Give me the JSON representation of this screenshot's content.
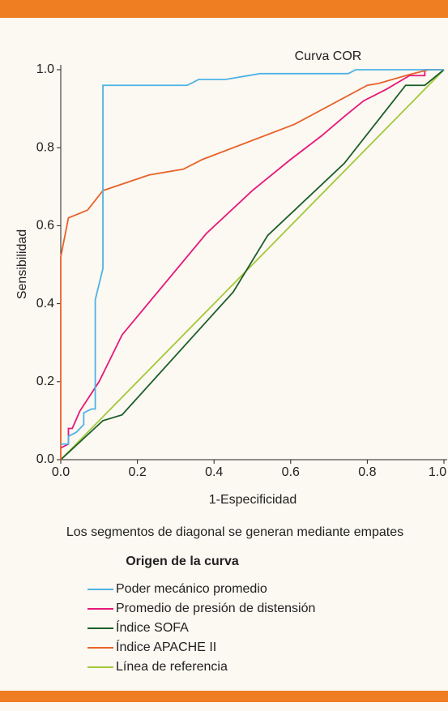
{
  "chart_data": {
    "type": "line",
    "title": "Curva COR",
    "xlabel": "1-Especificidad",
    "ylabel": "Sensibilidad",
    "note": "Los segmentos de diagonal se generan mediante empates",
    "legend_title": "Origen de la curva",
    "xlim": [
      0,
      1
    ],
    "ylim": [
      0,
      1
    ],
    "xticks": [
      {
        "value": 0,
        "label": "0.0"
      },
      {
        "value": 0.2,
        "label": "0.2"
      },
      {
        "value": 0.4,
        "label": "0.4"
      },
      {
        "value": 0.6,
        "label": "0.6"
      },
      {
        "value": 0.8,
        "label": "0.8"
      },
      {
        "value": 1,
        "label": "1.0"
      }
    ],
    "yticks": [
      {
        "value": 0,
        "label": "0.0"
      },
      {
        "value": 0.2,
        "label": "0.2"
      },
      {
        "value": 0.4,
        "label": "0.4"
      },
      {
        "value": 0.6,
        "label": "0.6"
      },
      {
        "value": 0.8,
        "label": "0.8"
      },
      {
        "value": 1,
        "label": "1.0"
      }
    ],
    "series": [
      {
        "name": "Poder mecánico promedio",
        "color": "#4db3e6",
        "x": [
          0,
          0.02,
          0.02,
          0.04,
          0.06,
          0.06,
          0.08,
          0.09,
          0.09,
          0.1,
          0.11,
          0.11,
          0.33,
          0.36,
          0.43,
          0.52,
          0.75,
          0.77,
          1
        ],
        "values": [
          0.04,
          0.04,
          0.06,
          0.07,
          0.09,
          0.12,
          0.13,
          0.13,
          0.41,
          0.45,
          0.49,
          0.96,
          0.96,
          0.975,
          0.975,
          0.99,
          0.99,
          1,
          1
        ]
      },
      {
        "name": "Promedio de presión de distensión",
        "color": "#e6187a",
        "x": [
          0,
          0.02,
          0.02,
          0.03,
          0.05,
          0.08,
          0.1,
          0.11,
          0.16,
          0.38,
          0.5,
          0.6,
          0.68,
          0.74,
          0.79,
          0.85,
          0.91,
          0.95,
          0.95,
          1
        ],
        "values": [
          0.03,
          0.04,
          0.08,
          0.08,
          0.125,
          0.17,
          0.2,
          0.22,
          0.32,
          0.58,
          0.69,
          0.77,
          0.83,
          0.88,
          0.92,
          0.95,
          0.985,
          0.985,
          1,
          1
        ]
      },
      {
        "name": "Índice SOFA",
        "color": "#1a5e2a",
        "x": [
          0,
          0.11,
          0.16,
          0.45,
          0.54,
          0.74,
          0.9,
          0.95,
          1
        ],
        "values": [
          0,
          0.1,
          0.115,
          0.43,
          0.575,
          0.76,
          0.96,
          0.96,
          1
        ]
      },
      {
        "name": "Índice APACHE II",
        "color": "#e8622a",
        "x": [
          0,
          0,
          0.02,
          0.07,
          0.11,
          0.23,
          0.32,
          0.37,
          0.61,
          0.8,
          0.83,
          0.9,
          0.96,
          1
        ],
        "values": [
          0,
          0.52,
          0.62,
          0.64,
          0.69,
          0.73,
          0.745,
          0.77,
          0.86,
          0.96,
          0.965,
          0.985,
          1,
          1
        ]
      },
      {
        "name": "Línea de referencia",
        "color": "#a3c93a",
        "x": [
          0,
          1
        ],
        "values": [
          0,
          1
        ]
      }
    ]
  }
}
